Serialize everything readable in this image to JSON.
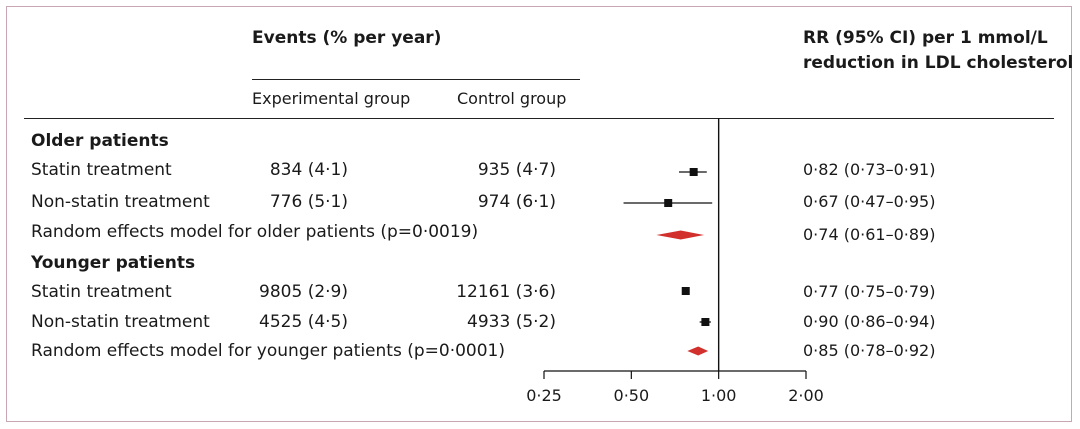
{
  "header": {
    "events_label": "Events (% per year)",
    "rr_label_line1": "RR (95% CI) per 1 mmol/L",
    "rr_label_line2": "reduction in LDL cholesterol",
    "experimental_label": "Experimental group",
    "control_label": "Control group"
  },
  "sections": [
    {
      "title": "Older patients"
    },
    {
      "title": "Younger patients"
    }
  ],
  "rows": [
    {
      "label": "Statin treatment",
      "experimental": "834 (4·1)",
      "control": "935 (4·7)",
      "rr_text": "0·82 (0·73–0·91)"
    },
    {
      "label": "Non-statin treatment",
      "experimental": "776 (5·1)",
      "control": "974 (6·1)",
      "rr_text": "0·67 (0·47–0·95)"
    },
    {
      "label": "Random effects model for older patients (p=0·0019)",
      "experimental": "",
      "control": "",
      "rr_text": "0·74 (0·61–0·89)"
    },
    {
      "label": "Statin treatment",
      "experimental": "9805 (2·9)",
      "control": "12161 (3·6)",
      "rr_text": "0·77 (0·75–0·79)"
    },
    {
      "label": "Non-statin treatment",
      "experimental": "4525 (4·5)",
      "control": "4933 (5·2)",
      "rr_text": "0·90 (0·86–0·94)"
    },
    {
      "label": "Random effects model for younger patients (p=0·0001)",
      "experimental": "",
      "control": "",
      "rr_text": "0·85 (0·78–0·92)"
    }
  ],
  "chart_data": {
    "type": "forest",
    "scale": "log2",
    "xlim": [
      0.25,
      2.0
    ],
    "reference_line": 1.0,
    "ticks": [
      0.25,
      0.5,
      1.0,
      2.0
    ],
    "tick_labels": [
      "0·25",
      "0·50",
      "1·00",
      "2·00"
    ],
    "estimates": [
      {
        "group": "Older patients",
        "label": "Statin treatment",
        "rr": 0.82,
        "lo": 0.73,
        "hi": 0.91,
        "kind": "square"
      },
      {
        "group": "Older patients",
        "label": "Non-statin treatment",
        "rr": 0.67,
        "lo": 0.47,
        "hi": 0.95,
        "kind": "square"
      },
      {
        "group": "Older patients",
        "label": "Random effects model",
        "rr": 0.74,
        "lo": 0.61,
        "hi": 0.89,
        "kind": "diamond"
      },
      {
        "group": "Younger patients",
        "label": "Statin treatment",
        "rr": 0.77,
        "lo": 0.75,
        "hi": 0.79,
        "kind": "square"
      },
      {
        "group": "Younger patients",
        "label": "Non-statin treatment",
        "rr": 0.9,
        "lo": 0.86,
        "hi": 0.94,
        "kind": "square"
      },
      {
        "group": "Younger patients",
        "label": "Random effects model",
        "rr": 0.85,
        "lo": 0.78,
        "hi": 0.92,
        "kind": "diamond"
      }
    ],
    "colors": {
      "diamond": "#d2302c",
      "marker": "#111111"
    }
  }
}
